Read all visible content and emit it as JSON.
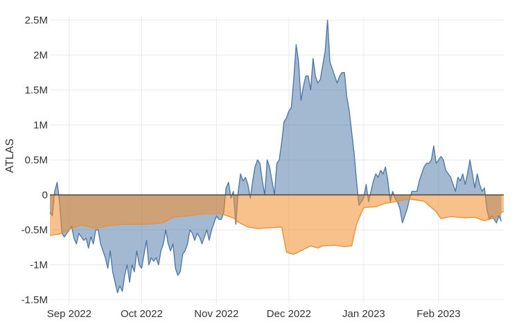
{
  "chart_data": {
    "type": "area",
    "ylabel": "ATLAS",
    "ylim": [
      -1550000,
      2550000
    ],
    "xlim": [
      "2022-08-24",
      "2023-02-28"
    ],
    "grid": true,
    "y_ticks": [
      {
        "value": -1500000,
        "label": "-1.5M"
      },
      {
        "value": -1000000,
        "label": "-1M"
      },
      {
        "value": -500000,
        "label": "-0.5M"
      },
      {
        "value": 0,
        "label": "0"
      },
      {
        "value": 500000,
        "label": "0.5M"
      },
      {
        "value": 1000000,
        "label": "1M"
      },
      {
        "value": 1500000,
        "label": "1.5M"
      },
      {
        "value": 2000000,
        "label": "2M"
      },
      {
        "value": 2500000,
        "label": "2.5M"
      }
    ],
    "x_ticks": [
      {
        "value": "2022-09-01",
        "label": "Sep 2022"
      },
      {
        "value": "2022-10-01",
        "label": "Oct 2022"
      },
      {
        "value": "2022-11-01",
        "label": "Nov 2022"
      },
      {
        "value": "2022-12-01",
        "label": "Dec 2022"
      },
      {
        "value": "2023-01-01",
        "label": "Jan 2023"
      },
      {
        "value": "2023-02-01",
        "label": "Feb 2023"
      }
    ],
    "colors": {
      "series_1": "#4e79a7",
      "series_2": "#f28e2b"
    },
    "series": [
      {
        "color": "#4e79a7",
        "points": [
          [
            "2022-08-24",
            -250000
          ],
          [
            "2022-08-25",
            -300000
          ],
          [
            "2022-08-26",
            50000
          ],
          [
            "2022-08-27",
            180000
          ],
          [
            "2022-08-28",
            -100000
          ],
          [
            "2022-08-29",
            -550000
          ],
          [
            "2022-08-30",
            -600000
          ],
          [
            "2022-08-31",
            -550000
          ],
          [
            "2022-09-01",
            -500000
          ],
          [
            "2022-09-02",
            -450000
          ],
          [
            "2022-09-03",
            -620000
          ],
          [
            "2022-09-04",
            -700000
          ],
          [
            "2022-09-05",
            -550000
          ],
          [
            "2022-09-06",
            -600000
          ],
          [
            "2022-09-07",
            -650000
          ],
          [
            "2022-09-08",
            -620000
          ],
          [
            "2022-09-09",
            -760000
          ],
          [
            "2022-09-10",
            -600000
          ],
          [
            "2022-09-11",
            -700000
          ],
          [
            "2022-09-12",
            -500000
          ],
          [
            "2022-09-13",
            -500000
          ],
          [
            "2022-09-14",
            -700000
          ],
          [
            "2022-09-15",
            -800000
          ],
          [
            "2022-09-16",
            -900000
          ],
          [
            "2022-09-17",
            -1050000
          ],
          [
            "2022-09-18",
            -800000
          ],
          [
            "2022-09-19",
            -1100000
          ],
          [
            "2022-09-20",
            -1250000
          ],
          [
            "2022-09-21",
            -1400000
          ],
          [
            "2022-09-22",
            -1300000
          ],
          [
            "2022-09-23",
            -1380000
          ],
          [
            "2022-09-24",
            -1150000
          ],
          [
            "2022-09-25",
            -1000000
          ],
          [
            "2022-09-26",
            -1250000
          ],
          [
            "2022-09-27",
            -1000000
          ],
          [
            "2022-09-28",
            -1100000
          ],
          [
            "2022-09-29",
            -800000
          ],
          [
            "2022-09-30",
            -1000000
          ],
          [
            "2022-10-01",
            -1050000
          ],
          [
            "2022-10-02",
            -850000
          ],
          [
            "2022-10-03",
            -650000
          ],
          [
            "2022-10-04",
            -1000000
          ],
          [
            "2022-10-05",
            -900000
          ],
          [
            "2022-10-06",
            -950000
          ],
          [
            "2022-10-07",
            -900000
          ],
          [
            "2022-10-08",
            -1000000
          ],
          [
            "2022-10-09",
            -800000
          ],
          [
            "2022-10-10",
            -700000
          ],
          [
            "2022-10-11",
            -500000
          ],
          [
            "2022-10-12",
            -700000
          ],
          [
            "2022-10-13",
            -800000
          ],
          [
            "2022-10-14",
            -700000
          ],
          [
            "2022-10-15",
            -1050000
          ],
          [
            "2022-10-16",
            -1150000
          ],
          [
            "2022-10-17",
            -1100000
          ],
          [
            "2022-10-18",
            -850000
          ],
          [
            "2022-10-19",
            -800000
          ],
          [
            "2022-10-20",
            -700000
          ],
          [
            "2022-10-21",
            -500000
          ],
          [
            "2022-10-22",
            -550000
          ],
          [
            "2022-10-23",
            -650000
          ],
          [
            "2022-10-24",
            -550000
          ],
          [
            "2022-10-25",
            -600000
          ],
          [
            "2022-10-26",
            -700000
          ],
          [
            "2022-10-27",
            -600000
          ],
          [
            "2022-10-28",
            -500000
          ],
          [
            "2022-10-29",
            -650000
          ],
          [
            "2022-10-30",
            -500000
          ],
          [
            "2022-10-31",
            -400000
          ],
          [
            "2022-11-01",
            -300000
          ],
          [
            "2022-11-02",
            -350000
          ],
          [
            "2022-11-03",
            -350000
          ],
          [
            "2022-11-04",
            -250000
          ],
          [
            "2022-11-05",
            100000
          ],
          [
            "2022-11-06",
            180000
          ],
          [
            "2022-11-07",
            -50000
          ],
          [
            "2022-11-08",
            50000
          ],
          [
            "2022-11-09",
            -420000
          ],
          [
            "2022-11-10",
            50000
          ],
          [
            "2022-11-11",
            300000
          ],
          [
            "2022-11-12",
            200000
          ],
          [
            "2022-11-13",
            250000
          ],
          [
            "2022-11-14",
            150000
          ],
          [
            "2022-11-15",
            -50000
          ],
          [
            "2022-11-16",
            200000
          ],
          [
            "2022-11-17",
            400000
          ],
          [
            "2022-11-18",
            500000
          ],
          [
            "2022-11-19",
            450000
          ],
          [
            "2022-11-20",
            200000
          ],
          [
            "2022-11-21",
            0
          ],
          [
            "2022-11-22",
            500000
          ],
          [
            "2022-11-23",
            400000
          ],
          [
            "2022-11-24",
            200000
          ],
          [
            "2022-11-25",
            0
          ],
          [
            "2022-11-26",
            450000
          ],
          [
            "2022-11-27",
            500000
          ],
          [
            "2022-11-28",
            750000
          ],
          [
            "2022-11-29",
            1050000
          ],
          [
            "2022-11-30",
            1100000
          ],
          [
            "2022-12-01",
            1200000
          ],
          [
            "2022-12-02",
            1250000
          ],
          [
            "2022-12-03",
            1650000
          ],
          [
            "2022-12-04",
            2150000
          ],
          [
            "2022-12-05",
            1900000
          ],
          [
            "2022-12-06",
            1350000
          ],
          [
            "2022-12-07",
            1550000
          ],
          [
            "2022-12-08",
            1700000
          ],
          [
            "2022-12-09",
            1700000
          ],
          [
            "2022-12-10",
            1500000
          ],
          [
            "2022-12-11",
            1950000
          ],
          [
            "2022-12-12",
            1700000
          ],
          [
            "2022-12-13",
            1600000
          ],
          [
            "2022-12-14",
            1650000
          ],
          [
            "2022-12-15",
            1850000
          ],
          [
            "2022-12-16",
            2050000
          ],
          [
            "2022-12-17",
            2500000
          ],
          [
            "2022-12-18",
            1900000
          ],
          [
            "2022-12-19",
            1800000
          ],
          [
            "2022-12-20",
            1700000
          ],
          [
            "2022-12-21",
            1600000
          ],
          [
            "2022-12-22",
            1700000
          ],
          [
            "2022-12-23",
            1750000
          ],
          [
            "2022-12-24",
            1750000
          ],
          [
            "2022-12-25",
            1400000
          ],
          [
            "2022-12-26",
            1200000
          ],
          [
            "2022-12-27",
            900000
          ],
          [
            "2022-12-28",
            600000
          ],
          [
            "2022-12-29",
            200000
          ],
          [
            "2022-12-30",
            -150000
          ],
          [
            "2022-12-31",
            -100000
          ],
          [
            "2023-01-01",
            -50000
          ],
          [
            "2023-01-02",
            150000
          ],
          [
            "2023-01-03",
            -100000
          ],
          [
            "2023-01-04",
            50000
          ],
          [
            "2023-01-05",
            200000
          ],
          [
            "2023-01-06",
            300000
          ],
          [
            "2023-01-07",
            250000
          ],
          [
            "2023-01-08",
            350000
          ],
          [
            "2023-01-09",
            300000
          ],
          [
            "2023-01-10",
            400000
          ],
          [
            "2023-01-11",
            200000
          ],
          [
            "2023-01-12",
            -100000
          ],
          [
            "2023-01-13",
            50000
          ],
          [
            "2023-01-14",
            -50000
          ],
          [
            "2023-01-15",
            -100000
          ],
          [
            "2023-01-16",
            -200000
          ],
          [
            "2023-01-17",
            -400000
          ],
          [
            "2023-01-18",
            -300000
          ],
          [
            "2023-01-19",
            -200000
          ],
          [
            "2023-01-20",
            -50000
          ],
          [
            "2023-01-21",
            50000
          ],
          [
            "2023-01-22",
            50000
          ],
          [
            "2023-01-23",
            50000
          ],
          [
            "2023-01-24",
            200000
          ],
          [
            "2023-01-25",
            300000
          ],
          [
            "2023-01-26",
            400000
          ],
          [
            "2023-01-27",
            450000
          ],
          [
            "2023-01-28",
            450000
          ],
          [
            "2023-01-29",
            500000
          ],
          [
            "2023-01-30",
            700000
          ],
          [
            "2023-01-31",
            450000
          ],
          [
            "2023-02-01",
            500000
          ],
          [
            "2023-02-02",
            550000
          ],
          [
            "2023-02-03",
            500000
          ],
          [
            "2023-02-04",
            350000
          ],
          [
            "2023-02-05",
            300000
          ],
          [
            "2023-02-06",
            250000
          ],
          [
            "2023-02-07",
            150000
          ],
          [
            "2023-02-08",
            50000
          ],
          [
            "2023-02-09",
            250000
          ],
          [
            "2023-02-10",
            200000
          ],
          [
            "2023-02-11",
            300000
          ],
          [
            "2023-02-12",
            150000
          ],
          [
            "2023-02-13",
            300000
          ],
          [
            "2023-02-14",
            500000
          ],
          [
            "2023-02-15",
            300000
          ],
          [
            "2023-02-16",
            100000
          ],
          [
            "2023-02-17",
            300000
          ],
          [
            "2023-02-18",
            150000
          ],
          [
            "2023-02-19",
            50000
          ],
          [
            "2023-02-20",
            100000
          ],
          [
            "2023-02-21",
            -200000
          ],
          [
            "2023-02-22",
            -350000
          ],
          [
            "2023-02-23",
            -300000
          ],
          [
            "2023-02-24",
            -350000
          ],
          [
            "2023-02-25",
            -400000
          ],
          [
            "2023-02-26",
            -300000
          ],
          [
            "2023-02-27",
            -380000
          ]
        ]
      },
      {
        "color": "#f28e2b",
        "points": [
          [
            "2022-08-24",
            -580000
          ],
          [
            "2022-08-28",
            -560000
          ],
          [
            "2022-09-02",
            -480000
          ],
          [
            "2022-09-06",
            -430000
          ],
          [
            "2022-09-12",
            -480000
          ],
          [
            "2022-09-16",
            -450000
          ],
          [
            "2022-09-20",
            -430000
          ],
          [
            "2022-09-27",
            -420000
          ],
          [
            "2022-10-03",
            -420000
          ],
          [
            "2022-10-10",
            -400000
          ],
          [
            "2022-10-14",
            -320000
          ],
          [
            "2022-10-20",
            -300000
          ],
          [
            "2022-10-27",
            -270000
          ],
          [
            "2022-11-03",
            -270000
          ],
          [
            "2022-11-08",
            -330000
          ],
          [
            "2022-11-10",
            -390000
          ],
          [
            "2022-11-14",
            -460000
          ],
          [
            "2022-11-18",
            -480000
          ],
          [
            "2022-11-24",
            -470000
          ],
          [
            "2022-11-28",
            -460000
          ],
          [
            "2022-11-30",
            -820000
          ],
          [
            "2022-12-03",
            -850000
          ],
          [
            "2022-12-06",
            -800000
          ],
          [
            "2022-12-10",
            -730000
          ],
          [
            "2022-12-13",
            -760000
          ],
          [
            "2022-12-15",
            -730000
          ],
          [
            "2022-12-20",
            -720000
          ],
          [
            "2022-12-24",
            -740000
          ],
          [
            "2022-12-27",
            -730000
          ],
          [
            "2022-12-29",
            -420000
          ],
          [
            "2023-01-01",
            -180000
          ],
          [
            "2023-01-06",
            -170000
          ],
          [
            "2023-01-10",
            -120000
          ],
          [
            "2023-01-14",
            -100000
          ],
          [
            "2023-01-20",
            -60000
          ],
          [
            "2023-01-26",
            -90000
          ],
          [
            "2023-01-31",
            -240000
          ],
          [
            "2023-02-02",
            -340000
          ],
          [
            "2023-02-06",
            -310000
          ],
          [
            "2023-02-12",
            -330000
          ],
          [
            "2023-02-16",
            -320000
          ],
          [
            "2023-02-20",
            -370000
          ],
          [
            "2023-02-25",
            -320000
          ],
          [
            "2023-02-27",
            -250000
          ],
          [
            "2023-02-28",
            -240000
          ]
        ]
      }
    ]
  }
}
